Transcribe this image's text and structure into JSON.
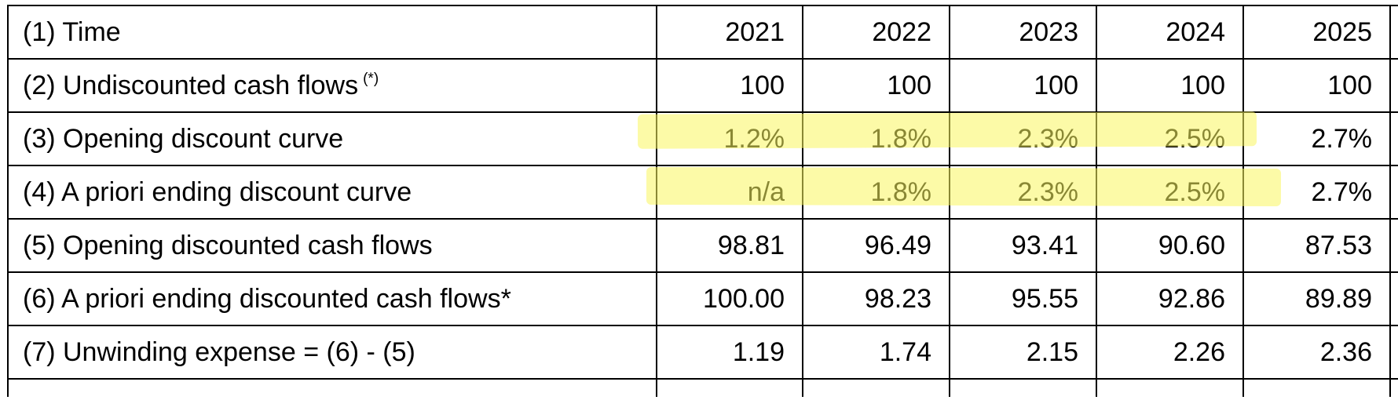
{
  "table": {
    "years": [
      "2021",
      "2022",
      "2023",
      "2024",
      "2025"
    ],
    "rows": [
      {
        "label": "(2) Undiscounted cash flows",
        "note": "(*)",
        "values": [
          "100",
          "100",
          "100",
          "100",
          "100"
        ]
      },
      {
        "label": "(3) Opening discount curve",
        "values": [
          "1.2%",
          "1.8%",
          "2.3%",
          "2.5%",
          "2.7%"
        ]
      },
      {
        "label": "(4) A priori ending discount curve",
        "values": [
          "n/a",
          "1.8%",
          "2.3%",
          "2.5%",
          "2.7%"
        ]
      },
      {
        "label": "(5) Opening discounted cash flows",
        "values": [
          "98.81",
          "96.49",
          "93.41",
          "90.60",
          "87.53"
        ]
      },
      {
        "label": "(6) A priori ending discounted cash flows*",
        "values": [
          "100.00",
          "98.23",
          "95.55",
          "92.86",
          "89.89"
        ]
      },
      {
        "label": "(7) Unwinding expense = (6) - (5)",
        "values": [
          "1.19",
          "1.74",
          "2.15",
          "2.26",
          "2.36"
        ]
      }
    ],
    "header_label": "(1) Time"
  },
  "highlights": {
    "color": "#faf55f",
    "rows": [
      "(3) Opening discount curve",
      "(4) A priori ending discount curve"
    ],
    "years": [
      "2021",
      "2022",
      "2023",
      "2024"
    ]
  }
}
